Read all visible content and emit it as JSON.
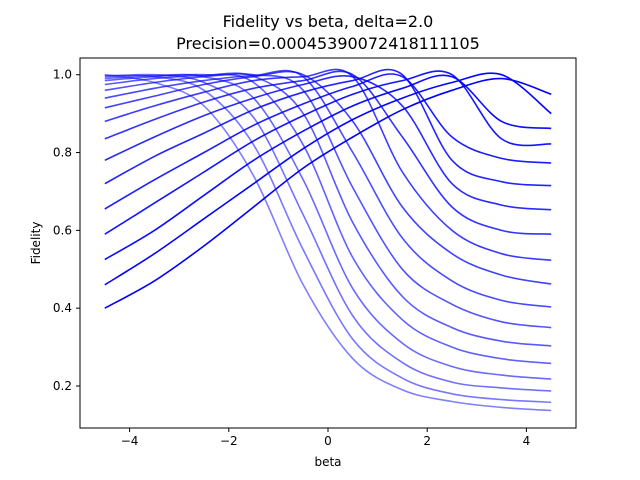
{
  "chart_data": {
    "type": "line",
    "title": "Fidelity vs beta, delta=2.0",
    "subtitle": "Precision=0.00045390072418111105",
    "xlabel": "beta",
    "ylabel": "Fidelity",
    "xlim": [
      -5.0,
      5.0
    ],
    "ylim": [
      0.092,
      1.043
    ],
    "x_ticks": [
      -4,
      -2,
      0,
      2,
      4
    ],
    "x_tick_labels": [
      "−4",
      "−2",
      "0",
      "2",
      "4"
    ],
    "y_ticks": [
      0.2,
      0.4,
      0.6,
      0.8,
      1.0
    ],
    "y_tick_labels": [
      "0.2",
      "0.4",
      "0.6",
      "0.8",
      "1.0"
    ],
    "grid": false,
    "legend": "none",
    "line_color": "#0000ff",
    "beta_range": [
      -4.5,
      4.5
    ],
    "series": [
      {
        "center": -4.5,
        "alpha": 0.5,
        "x": [
          -4.5,
          -3.5,
          -2.5,
          -1.5,
          -0.5,
          0.5,
          1.5,
          2.5,
          3.5,
          4.5
        ],
        "y": [
          1.0,
          0.98,
          0.92,
          0.74,
          0.46,
          0.27,
          0.19,
          0.16,
          0.145,
          0.137
        ]
      },
      {
        "center": -4.0,
        "alpha": 0.53,
        "x": [
          -4.5,
          -3.5,
          -2.5,
          -1.5,
          -0.5,
          0.5,
          1.5,
          2.5,
          3.5,
          4.5
        ],
        "y": [
          0.998,
          0.995,
          0.96,
          0.82,
          0.55,
          0.32,
          0.22,
          0.18,
          0.165,
          0.158
        ]
      },
      {
        "center": -3.5,
        "alpha": 0.56,
        "x": [
          -4.5,
          -3.5,
          -2.5,
          -1.5,
          -0.5,
          0.5,
          1.5,
          2.5,
          3.5,
          4.5
        ],
        "y": [
          0.995,
          1.0,
          0.98,
          0.89,
          0.64,
          0.38,
          0.26,
          0.21,
          0.195,
          0.187
        ]
      },
      {
        "center": -3.0,
        "alpha": 0.59,
        "x": [
          -4.5,
          -3.5,
          -2.5,
          -1.5,
          -0.5,
          0.5,
          1.5,
          2.5,
          3.5,
          4.5
        ],
        "y": [
          0.99,
          0.998,
          0.995,
          0.94,
          0.73,
          0.45,
          0.31,
          0.25,
          0.228,
          0.218
        ]
      },
      {
        "center": -2.5,
        "alpha": 0.62,
        "x": [
          -4.5,
          -3.5,
          -2.5,
          -1.5,
          -0.5,
          0.5,
          1.5,
          2.5,
          3.5,
          4.5
        ],
        "y": [
          0.985,
          0.995,
          1.0,
          0.98,
          0.82,
          0.53,
          0.37,
          0.3,
          0.27,
          0.258
        ]
      },
      {
        "center": -2.0,
        "alpha": 0.65,
        "x": [
          -4.5,
          -3.5,
          -2.5,
          -1.5,
          -0.5,
          0.5,
          1.5,
          2.5,
          3.5,
          4.5
        ],
        "y": [
          0.975,
          0.99,
          0.998,
          0.996,
          0.9,
          0.62,
          0.43,
          0.35,
          0.315,
          0.303
        ]
      },
      {
        "center": -1.5,
        "alpha": 0.68,
        "x": [
          -4.5,
          -3.5,
          -2.5,
          -1.5,
          -0.5,
          0.5,
          1.5,
          2.5,
          3.5,
          4.5
        ],
        "y": [
          0.96,
          0.98,
          0.995,
          1.0,
          0.96,
          0.71,
          0.5,
          0.41,
          0.365,
          0.35
        ]
      },
      {
        "center": -1.0,
        "alpha": 0.71,
        "x": [
          -4.5,
          -3.5,
          -2.5,
          -1.5,
          -0.5,
          0.5,
          1.5,
          2.5,
          3.5,
          4.5
        ],
        "y": [
          0.94,
          0.965,
          0.985,
          0.998,
          0.995,
          0.8,
          0.58,
          0.47,
          0.42,
          0.403
        ]
      },
      {
        "center": -0.5,
        "alpha": 0.74,
        "x": [
          -4.5,
          -3.5,
          -2.5,
          -1.5,
          -0.5,
          0.5,
          1.5,
          2.5,
          3.5,
          4.5
        ],
        "y": [
          0.915,
          0.945,
          0.975,
          0.995,
          1.0,
          0.88,
          0.66,
          0.54,
          0.485,
          0.462
        ]
      },
      {
        "center": 0.0,
        "alpha": 0.77,
        "x": [
          -4.5,
          -3.5,
          -2.5,
          -1.5,
          -0.5,
          0.5,
          1.5,
          2.5,
          3.5,
          4.5
        ],
        "y": [
          0.88,
          0.92,
          0.955,
          0.985,
          0.995,
          0.995,
          0.75,
          0.6,
          0.54,
          0.523
        ]
      },
      {
        "center": 0.5,
        "alpha": 0.8,
        "x": [
          -4.5,
          -3.5,
          -2.5,
          -1.5,
          -0.5,
          0.5,
          1.5,
          2.5,
          3.5,
          4.5
        ],
        "y": [
          0.835,
          0.885,
          0.93,
          0.965,
          0.985,
          1.0,
          0.84,
          0.66,
          0.6,
          0.59
        ]
      },
      {
        "center": 1.0,
        "alpha": 0.83,
        "x": [
          -4.5,
          -3.5,
          -2.5,
          -1.5,
          -0.5,
          0.5,
          1.5,
          2.5,
          3.5,
          4.5
        ],
        "y": [
          0.78,
          0.84,
          0.895,
          0.94,
          0.975,
          0.995,
          0.92,
          0.72,
          0.665,
          0.653
        ]
      },
      {
        "center": 1.5,
        "alpha": 0.86,
        "x": [
          -4.5,
          -3.5,
          -2.5,
          -1.5,
          -0.5,
          0.5,
          1.5,
          2.5,
          3.5,
          4.5
        ],
        "y": [
          0.72,
          0.79,
          0.85,
          0.91,
          0.955,
          0.985,
          1.0,
          0.78,
          0.725,
          0.715
        ]
      },
      {
        "center": 2.0,
        "alpha": 0.89,
        "x": [
          -4.5,
          -3.5,
          -2.5,
          -1.5,
          -0.5,
          0.5,
          1.5,
          2.5,
          3.5,
          4.5
        ],
        "y": [
          0.655,
          0.73,
          0.8,
          0.87,
          0.925,
          0.97,
          0.995,
          0.84,
          0.785,
          0.773
        ]
      },
      {
        "center": 2.5,
        "alpha": 0.92,
        "x": [
          -4.5,
          -3.5,
          -2.5,
          -1.5,
          -0.5,
          0.5,
          1.5,
          2.5,
          3.5,
          4.5
        ],
        "y": [
          0.59,
          0.67,
          0.75,
          0.83,
          0.895,
          0.95,
          0.985,
          1.0,
          0.835,
          0.822
        ]
      },
      {
        "center": 3.0,
        "alpha": 0.95,
        "x": [
          -4.5,
          -3.5,
          -2.5,
          -1.5,
          -0.5,
          0.5,
          1.5,
          2.5,
          3.5,
          4.5
        ],
        "y": [
          0.525,
          0.6,
          0.69,
          0.78,
          0.855,
          0.92,
          0.965,
          0.995,
          0.88,
          0.862
        ]
      },
      {
        "center": 3.5,
        "alpha": 0.98,
        "x": [
          -4.5,
          -3.5,
          -2.5,
          -1.5,
          -0.5,
          0.5,
          1.5,
          2.5,
          3.5,
          4.5
        ],
        "y": [
          0.46,
          0.54,
          0.63,
          0.72,
          0.81,
          0.885,
          0.94,
          0.98,
          1.0,
          0.9
        ]
      },
      {
        "center": 4.0,
        "alpha": 1.0,
        "x": [
          -4.5,
          -3.5,
          -2.5,
          -1.5,
          -0.5,
          0.5,
          1.5,
          2.5,
          3.5,
          4.5
        ],
        "y": [
          0.4,
          0.47,
          0.56,
          0.66,
          0.76,
          0.84,
          0.91,
          0.96,
          0.99,
          0.95
        ]
      }
    ]
  }
}
